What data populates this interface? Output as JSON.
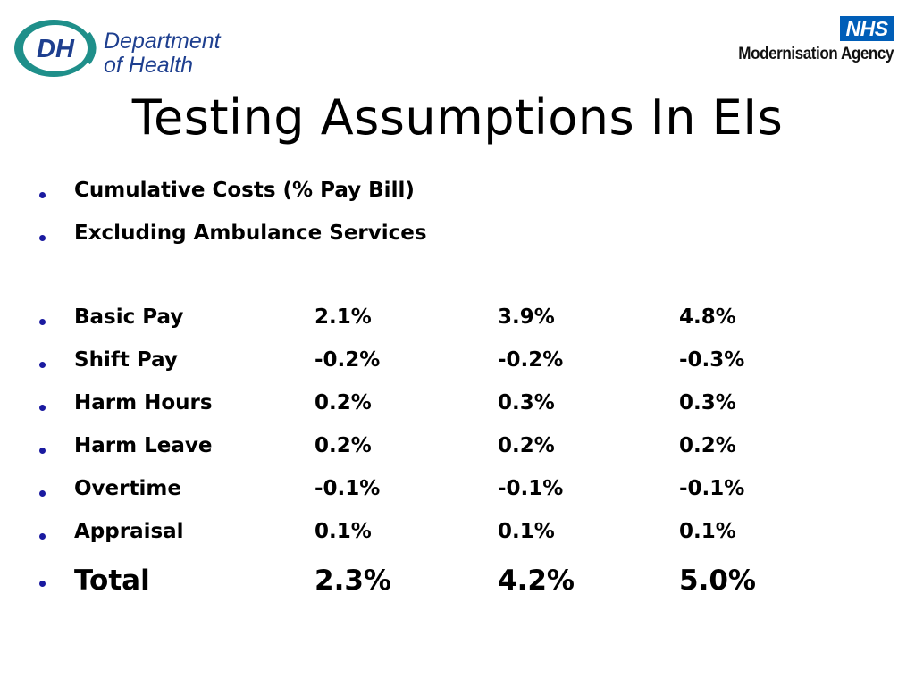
{
  "logos": {
    "dh": {
      "initials": "DH",
      "line1": "Department",
      "line2": "of Health"
    },
    "nhs": {
      "mark": "NHS",
      "agency": "Modernisation Agency"
    }
  },
  "title": "Testing Assumptions In EIs",
  "intro": [
    "Cumulative Costs (% Pay Bill)",
    "Excluding Ambulance Services"
  ],
  "rows": [
    {
      "label": "Basic Pay",
      "values": [
        "2.1%",
        "3.9%",
        "4.8%"
      ]
    },
    {
      "label": "Shift Pay",
      "values": [
        "-0.2%",
        "-0.2%",
        "-0.3%"
      ]
    },
    {
      "label": "Harm Hours",
      "values": [
        "0.2%",
        "0.3%",
        "0.3%"
      ]
    },
    {
      "label": "Harm Leave",
      "values": [
        "0.2%",
        "0.2%",
        "0.2%"
      ]
    },
    {
      "label": "Overtime",
      "values": [
        "-0.1%",
        "-0.1%",
        "-0.1%"
      ]
    },
    {
      "label": "Appraisal",
      "values": [
        "0.1%",
        "0.1%",
        "0.1%"
      ]
    }
  ],
  "total": {
    "label": "Total",
    "values": [
      "2.3%",
      "4.2%",
      "5.0%"
    ]
  },
  "colors": {
    "bullet": "#1a1aa0",
    "dh_teal": "#1f8f8a",
    "dh_blue": "#1e3f8f",
    "nhs_blue": "#005eb8"
  }
}
